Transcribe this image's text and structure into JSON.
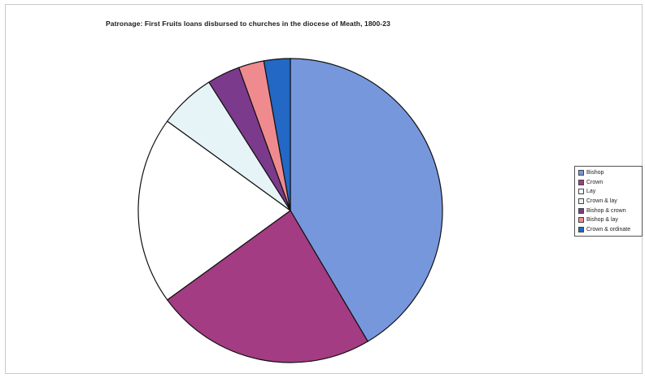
{
  "chart_data": {
    "type": "pie",
    "title": "Patronage: First Fruits loans disbursed to churches in the diocese of Meath, 1800-23",
    "legend_position": "right",
    "slices": [
      {
        "label": "Bishop",
        "value": 41.5,
        "color": "#7797dd"
      },
      {
        "label": "Crown",
        "value": 23.5,
        "color": "#a33c83"
      },
      {
        "label": "Lay",
        "value": 20.0,
        "color": "#ffffff"
      },
      {
        "label": "Crown & lay",
        "value": 6.0,
        "color": "#e6f4f7"
      },
      {
        "label": "Bishop & crown",
        "value": 3.5,
        "color": "#7c3a8c"
      },
      {
        "label": "Bishop & lay",
        "value": 2.7,
        "color": "#ef8b8e"
      },
      {
        "label": "Crown & ordinate",
        "value": 2.8,
        "color": "#2268c4"
      }
    ]
  }
}
